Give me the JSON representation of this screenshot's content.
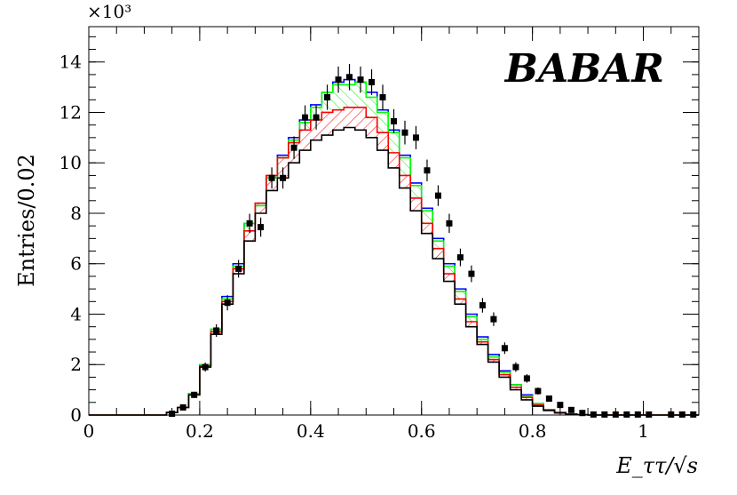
{
  "chart_data": {
    "type": "bar",
    "title": "",
    "logo_text": "BABAR",
    "xlabel": "E_ττ/√s",
    "ylabel": "Entries/0.02",
    "y_multiplier": "×10³",
    "xlim": [
      0,
      1.1
    ],
    "ylim": [
      0,
      15.4
    ],
    "x_ticks": [
      0,
      0.2,
      0.4,
      0.6,
      0.8,
      1
    ],
    "x_tick_labels": [
      "0",
      "0.2",
      "0.4",
      "0.6",
      "0.8",
      "1"
    ],
    "y_ticks": [
      0,
      2,
      4,
      6,
      8,
      10,
      12,
      14
    ],
    "y_tick_labels": [
      "0",
      "2",
      "4",
      "6",
      "8",
      "10",
      "12",
      "14"
    ],
    "bin_width": 0.02,
    "bin_edges_start": 0,
    "series": [
      {
        "color": "#000000",
        "values": [
          0,
          0,
          0,
          0,
          0,
          0,
          0,
          0.1,
          0.3,
          0.8,
          1.9,
          3.2,
          4.4,
          5.6,
          6.9,
          8.0,
          8.9,
          9.4,
          10.0,
          10.5,
          10.9,
          11.1,
          11.3,
          11.4,
          11.3,
          11.0,
          10.5,
          9.8,
          9.0,
          8.1,
          7.2,
          6.2,
          5.3,
          4.4,
          3.5,
          2.8,
          2.1,
          1.5,
          1.0,
          0.6,
          0.35,
          0.18,
          0.08,
          0.03,
          0.01,
          0,
          0,
          0,
          0,
          0,
          0,
          0,
          0,
          0,
          0
        ]
      },
      {
        "color": "#ff0000",
        "values": [
          0,
          0,
          0,
          0,
          0,
          0,
          0,
          0.1,
          0.3,
          0.8,
          1.95,
          3.3,
          4.5,
          5.8,
          7.3,
          8.4,
          9.5,
          10.2,
          10.8,
          11.3,
          11.7,
          12.0,
          12.1,
          12.2,
          12.2,
          11.8,
          11.2,
          10.4,
          9.5,
          8.6,
          7.6,
          6.6,
          5.6,
          4.6,
          3.7,
          2.9,
          2.2,
          1.6,
          1.1,
          0.7,
          0.4,
          0.2,
          0.1,
          0.04,
          0.01,
          0,
          0,
          0,
          0,
          0,
          0,
          0,
          0,
          0,
          0
        ]
      },
      {
        "color": "#00ff00",
        "values": [
          0,
          0,
          0,
          0,
          0,
          0,
          0,
          0.1,
          0.3,
          0.85,
          2.0,
          3.4,
          4.6,
          5.9,
          7.6,
          8.3,
          9.4,
          10.2,
          10.9,
          11.6,
          12.2,
          12.8,
          13.1,
          13.1,
          13.2,
          12.6,
          12.0,
          11.2,
          10.2,
          9.1,
          8.1,
          6.9,
          5.9,
          4.9,
          3.9,
          3.0,
          2.3,
          1.7,
          1.2,
          0.75,
          0.45,
          0.22,
          0.1,
          0.04,
          0.01,
          0,
          0,
          0,
          0,
          0,
          0,
          0,
          0,
          0,
          0
        ]
      },
      {
        "color": "#0000ff",
        "values": [
          0,
          0,
          0,
          0,
          0,
          0,
          0,
          0.1,
          0.3,
          0.85,
          2.0,
          3.4,
          4.7,
          6.0,
          7.6,
          8.4,
          9.4,
          10.3,
          11.0,
          11.7,
          12.3,
          12.8,
          13.2,
          13.3,
          13.2,
          12.8,
          12.1,
          11.3,
          10.3,
          9.2,
          8.2,
          7.0,
          6.0,
          5.0,
          4.0,
          3.1,
          2.4,
          1.75,
          1.2,
          0.8,
          0.45,
          0.22,
          0.1,
          0.04,
          0.01,
          0,
          0,
          0,
          0,
          0,
          0,
          0,
          0,
          0,
          0
        ]
      }
    ],
    "data_points": {
      "color": "#000000",
      "x": [
        0.15,
        0.17,
        0.19,
        0.21,
        0.23,
        0.25,
        0.27,
        0.29,
        0.31,
        0.33,
        0.35,
        0.37,
        0.39,
        0.41,
        0.43,
        0.45,
        0.47,
        0.49,
        0.51,
        0.53,
        0.55,
        0.57,
        0.59,
        0.61,
        0.63,
        0.65,
        0.67,
        0.69,
        0.71,
        0.73,
        0.75,
        0.77,
        0.79,
        0.81,
        0.83,
        0.85,
        0.87,
        0.89,
        0.91,
        0.93,
        0.95,
        0.97,
        0.99,
        1.01,
        1.05,
        1.07,
        1.09
      ],
      "y": [
        0.05,
        0.3,
        0.8,
        1.9,
        3.35,
        4.45,
        5.8,
        7.6,
        7.45,
        9.4,
        9.4,
        10.6,
        11.8,
        11.8,
        12.6,
        13.3,
        13.4,
        13.3,
        13.2,
        12.6,
        11.65,
        11.2,
        11.0,
        9.7,
        8.7,
        7.6,
        6.25,
        5.6,
        4.35,
        3.8,
        2.65,
        1.9,
        1.45,
        0.95,
        0.65,
        0.4,
        0.2,
        0.08,
        0.02,
        0.02,
        0.02,
        0.02,
        0.02,
        0.02,
        0.02,
        0.02,
        0.02
      ],
      "yerr": [
        0.05,
        0.1,
        0.12,
        0.18,
        0.25,
        0.3,
        0.35,
        0.38,
        0.38,
        0.42,
        0.42,
        0.45,
        0.48,
        0.48,
        0.5,
        0.52,
        0.52,
        0.52,
        0.51,
        0.5,
        0.48,
        0.47,
        0.46,
        0.43,
        0.41,
        0.38,
        0.35,
        0.33,
        0.29,
        0.27,
        0.23,
        0.19,
        0.17,
        0.14,
        0.11,
        0.09,
        0.06,
        0.04,
        0.02,
        0.02,
        0.02,
        0.02,
        0.02,
        0.02,
        0.02,
        0.02,
        0.02
      ]
    }
  }
}
